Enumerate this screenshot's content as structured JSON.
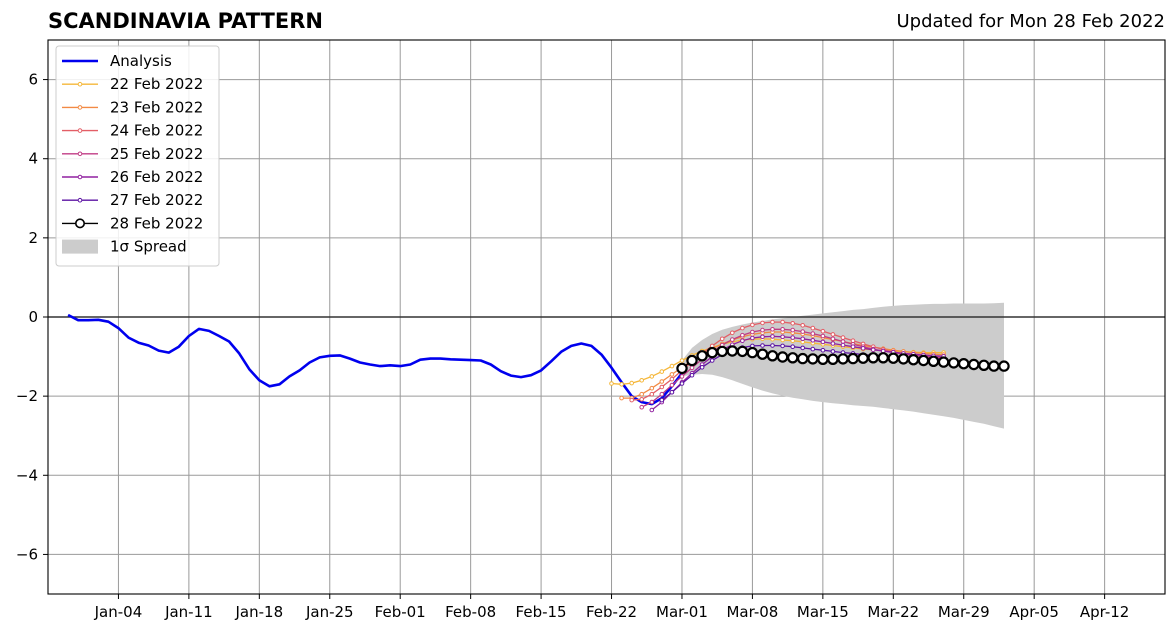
{
  "chart_data": {
    "type": "line",
    "title": "SCANDINAVIA PATTERN",
    "subtitle": "Updated for Mon 28 Feb 2022",
    "xlabel": "",
    "ylabel": "",
    "grid": true,
    "legend_position": "top-left",
    "x_range": [
      "2021-12-28",
      "2022-04-18"
    ],
    "ylim": [
      -7,
      7
    ],
    "y_ticks": [
      -6,
      -4,
      -2,
      0,
      2,
      4,
      6
    ],
    "y_tick_labels": [
      "−6",
      "−4",
      "−2",
      "0",
      "2",
      "4",
      "6"
    ],
    "x_ticks": [
      {
        "date": "2022-01-04",
        "label": "Jan-04"
      },
      {
        "date": "2022-01-11",
        "label": "Jan-11"
      },
      {
        "date": "2022-01-18",
        "label": "Jan-18"
      },
      {
        "date": "2022-01-25",
        "label": "Jan-25"
      },
      {
        "date": "2022-02-01",
        "label": "Feb-01"
      },
      {
        "date": "2022-02-08",
        "label": "Feb-08"
      },
      {
        "date": "2022-02-15",
        "label": "Feb-15"
      },
      {
        "date": "2022-02-22",
        "label": "Feb-22"
      },
      {
        "date": "2022-03-01",
        "label": "Mar-01"
      },
      {
        "date": "2022-03-08",
        "label": "Mar-08"
      },
      {
        "date": "2022-03-15",
        "label": "Mar-15"
      },
      {
        "date": "2022-03-22",
        "label": "Mar-22"
      },
      {
        "date": "2022-03-29",
        "label": "Mar-29"
      },
      {
        "date": "2022-04-05",
        "label": "Apr-05"
      },
      {
        "date": "2022-04-12",
        "label": "Apr-12"
      }
    ],
    "zero_line": 0,
    "analysis": {
      "name": "Analysis",
      "color": "#0000ee",
      "start": "2021-12-30",
      "values": [
        0.05,
        -0.08,
        -0.08,
        -0.07,
        -0.12,
        -0.28,
        -0.52,
        -0.65,
        -0.72,
        -0.85,
        -0.9,
        -0.75,
        -0.48,
        -0.3,
        -0.35,
        -0.48,
        -0.62,
        -0.92,
        -1.32,
        -1.6,
        -1.75,
        -1.7,
        -1.5,
        -1.35,
        -1.15,
        -1.02,
        -0.98,
        -0.97,
        -1.05,
        -1.15,
        -1.2,
        -1.24,
        -1.22,
        -1.24,
        -1.2,
        -1.08,
        -1.05,
        -1.05,
        -1.07,
        -1.08,
        -1.09,
        -1.1,
        -1.2,
        -1.37,
        -1.48,
        -1.52,
        -1.47,
        -1.35,
        -1.12,
        -0.88,
        -0.73,
        -0.67,
        -0.73,
        -0.95,
        -1.28,
        -1.65,
        -2.0,
        -2.15,
        -2.2,
        -2.05,
        -1.75,
        -1.42
      ]
    },
    "forecasts": [
      {
        "name": "22 Feb 2022",
        "color": "#f5b739",
        "start": "2022-02-22",
        "values": [
          -1.68,
          -1.7,
          -1.67,
          -1.6,
          -1.5,
          -1.38,
          -1.24,
          -1.1,
          -0.97,
          -0.86,
          -0.77,
          -0.69,
          -0.63,
          -0.58,
          -0.56,
          -0.55,
          -0.56,
          -0.58,
          -0.6,
          -0.63,
          -0.66,
          -0.69,
          -0.72,
          -0.75,
          -0.78,
          -0.81,
          -0.83,
          -0.85,
          -0.87,
          -0.88,
          -0.89,
          -0.9,
          -0.9,
          -0.9
        ]
      },
      {
        "name": "23 Feb 2022",
        "color": "#f28a44",
        "start": "2022-02-23",
        "values": [
          -2.05,
          -2.05,
          -1.95,
          -1.8,
          -1.63,
          -1.45,
          -1.27,
          -1.1,
          -0.94,
          -0.8,
          -0.68,
          -0.58,
          -0.5,
          -0.44,
          -0.4,
          -0.38,
          -0.38,
          -0.4,
          -0.43,
          -0.47,
          -0.52,
          -0.57,
          -0.62,
          -0.67,
          -0.72,
          -0.76,
          -0.8,
          -0.84,
          -0.87,
          -0.9,
          -0.92,
          -0.94,
          -0.95
        ]
      },
      {
        "name": "24 Feb 2022",
        "color": "#e35e66",
        "start": "2022-02-24",
        "values": [
          -2.1,
          -2.08,
          -1.95,
          -1.77,
          -1.57,
          -1.35,
          -1.13,
          -0.92,
          -0.73,
          -0.55,
          -0.4,
          -0.28,
          -0.2,
          -0.15,
          -0.13,
          -0.13,
          -0.16,
          -0.21,
          -0.28,
          -0.36,
          -0.44,
          -0.52,
          -0.6,
          -0.68,
          -0.75,
          -0.82,
          -0.88,
          -0.93,
          -0.97,
          -1.0,
          -1.02,
          -1.04
        ]
      },
      {
        "name": "25 Feb 2022",
        "color": "#c03b84",
        "start": "2022-02-25",
        "values": [
          -2.28,
          -2.15,
          -1.95,
          -1.72,
          -1.5,
          -1.28,
          -1.07,
          -0.88,
          -0.71,
          -0.57,
          -0.46,
          -0.38,
          -0.33,
          -0.31,
          -0.31,
          -0.33,
          -0.37,
          -0.42,
          -0.48,
          -0.55,
          -0.62,
          -0.69,
          -0.75,
          -0.81,
          -0.86,
          -0.9,
          -0.94,
          -0.97,
          -0.99,
          -1.01,
          -1.02
        ]
      },
      {
        "name": "26 Feb 2022",
        "color": "#9121a0",
        "start": "2022-02-26",
        "values": [
          -2.35,
          -2.15,
          -1.9,
          -1.65,
          -1.42,
          -1.2,
          -1.0,
          -0.83,
          -0.7,
          -0.6,
          -0.53,
          -0.5,
          -0.49,
          -0.5,
          -0.52,
          -0.55,
          -0.59,
          -0.63,
          -0.67,
          -0.71,
          -0.75,
          -0.79,
          -0.83,
          -0.86,
          -0.89,
          -0.92,
          -0.94,
          -0.96,
          -0.98,
          -0.99
        ]
      },
      {
        "name": "27 Feb 2022",
        "color": "#5b12a3",
        "start": "2022-02-27",
        "values": [
          -2.1,
          -1.9,
          -1.68,
          -1.47,
          -1.27,
          -1.1,
          -0.95,
          -0.84,
          -0.77,
          -0.73,
          -0.72,
          -0.72,
          -0.73,
          -0.75,
          -0.78,
          -0.81,
          -0.84,
          -0.87,
          -0.9,
          -0.92,
          -0.95,
          -0.97,
          -0.99,
          -1.0,
          -1.02,
          -1.03,
          -1.04,
          -1.05,
          -1.06
        ]
      },
      {
        "name": "28 Feb 2022",
        "color": "#000000",
        "start": "2022-03-01",
        "values": [
          -1.3,
          -1.1,
          -0.98,
          -0.9,
          -0.87,
          -0.86,
          -0.87,
          -0.9,
          -0.94,
          -0.98,
          -1.01,
          -1.03,
          -1.05,
          -1.06,
          -1.07,
          -1.07,
          -1.06,
          -1.05,
          -1.04,
          -1.03,
          -1.03,
          -1.04,
          -1.06,
          -1.08,
          -1.1,
          -1.12,
          -1.14,
          -1.16,
          -1.18,
          -1.2,
          -1.22,
          -1.24,
          -1.24
        ]
      }
    ],
    "spread": {
      "name": "1σ Spread",
      "color": "#cccccc",
      "start": "2022-03-01",
      "upper": [
        -1.1,
        -0.78,
        -0.58,
        -0.43,
        -0.32,
        -0.25,
        -0.19,
        -0.14,
        -0.1,
        -0.06,
        -0.03,
        0.0,
        0.03,
        0.06,
        0.09,
        0.12,
        0.15,
        0.18,
        0.2,
        0.23,
        0.26,
        0.28,
        0.3,
        0.31,
        0.32,
        0.33,
        0.33,
        0.34,
        0.34,
        0.34,
        0.34,
        0.35,
        0.36
      ],
      "lower": [
        -1.5,
        -1.46,
        -1.44,
        -1.46,
        -1.52,
        -1.6,
        -1.69,
        -1.78,
        -1.86,
        -1.93,
        -1.99,
        -2.04,
        -2.08,
        -2.12,
        -2.15,
        -2.18,
        -2.2,
        -2.23,
        -2.25,
        -2.27,
        -2.3,
        -2.33,
        -2.36,
        -2.39,
        -2.43,
        -2.47,
        -2.51,
        -2.55,
        -2.6,
        -2.65,
        -2.7,
        -2.76,
        -2.82
      ]
    },
    "legend": [
      "Analysis",
      "22 Feb 2022",
      "23 Feb 2022",
      "24 Feb 2022",
      "25 Feb 2022",
      "26 Feb 2022",
      "27 Feb 2022",
      "28 Feb 2022",
      "1σ Spread"
    ]
  }
}
